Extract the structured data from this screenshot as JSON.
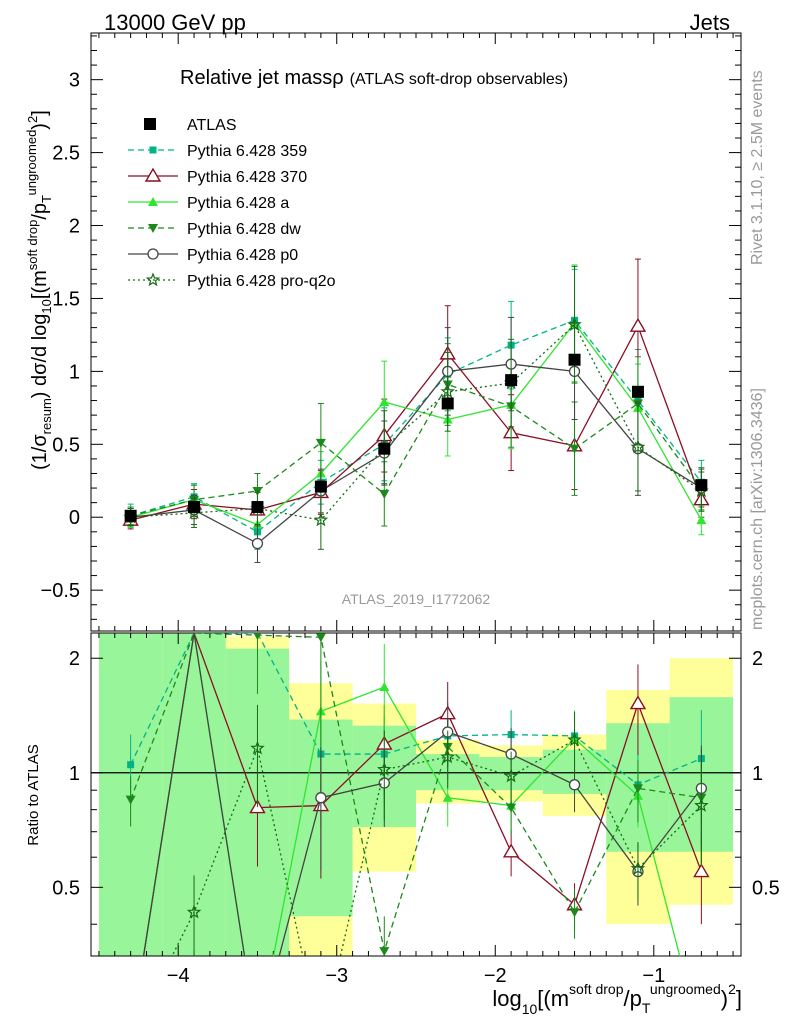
{
  "header": {
    "left": "13000 GeV pp",
    "right": "Jets"
  },
  "side_labels": {
    "rivet": "Rivet 3.1.10, ≥ 2.5M events",
    "mcplots": "mcplots.cern.ch [arXiv:1306.3436]"
  },
  "colors": {
    "atlas": "#000000",
    "p359": "#00b386",
    "p370": "#8b0f24",
    "pa": "#2ee62e",
    "pdw": "#1b8a1b",
    "pp0": "#444444",
    "pq2o": "#166b16",
    "band_yellow": "#ffff99",
    "band_green": "#99f599"
  },
  "chart_data": {
    "type": "line",
    "title_main": "Relative jet massρ",
    "title_sub": "(ATLAS soft-drop observables)",
    "watermark": "ATLAS_2019_I1772062",
    "xlabel": "log10[(m^soft drop/pT^ungroomed)^2]",
    "xlabel_parts": {
      "pre": "log",
      "sub": "10",
      "mid1": "[(m",
      "sup1": "soft drop",
      "mid2": "/p",
      "sub2": "T",
      "sup2": "ungroomed",
      "post": ")",
      "sup3": "2",
      "end": "]"
    },
    "ylabel_main": "(1/σresum) dσ/d log10[(m^soft drop/pT^ungroomed)^2]",
    "ylabel_ratio": "Ratio to ATLAS",
    "xlim": [
      -4.55,
      -0.45
    ],
    "ylim": [
      -0.78,
      3.32
    ],
    "ratio_ylim": [
      0.33,
      2.33
    ],
    "x_ticks": [
      -4,
      -3,
      -2,
      -1
    ],
    "x_tick_labels": [
      "−4",
      "−3",
      "−2",
      "−1"
    ],
    "y_ticks": [
      -0.5,
      0,
      0.5,
      1,
      1.5,
      2,
      2.5,
      3
    ],
    "y_tick_labels": [
      "−0.5",
      "0",
      "0.5",
      "1",
      "1.5",
      "2",
      "2.5",
      "3"
    ],
    "ratio_ticks": [
      0.5,
      1,
      2
    ],
    "ratio_tick_labels": [
      "0.5",
      "1",
      "2"
    ],
    "x": [
      -4.3,
      -3.9,
      -3.5,
      -3.1,
      -2.7,
      -2.3,
      -1.9,
      -1.5,
      -1.1,
      -0.7
    ],
    "bin_edges": [
      -4.5,
      -4.1,
      -3.7,
      -3.3,
      -2.9,
      -2.5,
      -2.1,
      -1.7,
      -1.3,
      -0.9,
      -0.5
    ],
    "data": {
      "name": "ATLAS",
      "y": [
        0.01,
        0.07,
        0.07,
        0.21,
        0.47,
        0.78,
        0.94,
        1.08,
        0.86,
        0.22
      ]
    },
    "ratio_bands": {
      "yellow": [
        [
          0.33,
          2.33
        ],
        [
          0.33,
          2.33
        ],
        [
          0.33,
          2.28
        ],
        [
          0.33,
          1.72
        ],
        [
          0.55,
          1.52
        ],
        [
          0.83,
          1.22
        ],
        [
          0.84,
          1.18
        ],
        [
          0.77,
          1.26
        ],
        [
          0.4,
          1.65
        ],
        [
          0.45,
          2.0
        ]
      ],
      "green": [
        [
          0.33,
          2.33
        ],
        [
          0.33,
          2.33
        ],
        [
          0.33,
          2.12
        ],
        [
          0.42,
          1.38
        ],
        [
          0.72,
          1.33
        ],
        [
          0.9,
          1.12
        ],
        [
          0.9,
          1.1
        ],
        [
          0.88,
          1.15
        ],
        [
          0.62,
          1.35
        ],
        [
          0.62,
          1.58
        ]
      ]
    },
    "series": [
      {
        "name": "Pythia 6.428 359",
        "key": "p359",
        "dash": "6,4",
        "marker": "square-small",
        "y": [
          0.01,
          0.14,
          -0.1,
          0.24,
          0.5,
          0.98,
          1.18,
          1.35,
          0.8,
          0.24
        ],
        "err": [
          0.08,
          0.09,
          0.12,
          0.15,
          0.25,
          0.25,
          0.3,
          0.35,
          0.35,
          0.15
        ],
        "ratio": [
          1.05,
          2.33,
          2.33,
          1.12,
          1.12,
          1.25,
          1.26,
          1.25,
          0.93,
          1.09
        ]
      },
      {
        "name": "Pythia 6.428 370",
        "key": "p370",
        "dash": "",
        "marker": "triangle-open",
        "y": [
          -0.02,
          0.09,
          0.05,
          0.17,
          0.56,
          1.12,
          0.58,
          0.49,
          1.31,
          0.12
        ],
        "err": [
          0.06,
          0.1,
          0.12,
          0.15,
          0.25,
          0.33,
          0.26,
          0.3,
          0.46,
          0.12
        ],
        "ratio": [
          0.05,
          2.33,
          0.81,
          0.82,
          1.19,
          1.43,
          0.62,
          0.45,
          1.52,
          0.55
        ]
      },
      {
        "name": "Pythia 6.428 a",
        "key": "pa",
        "dash": "",
        "marker": "triangle-up",
        "y": [
          0.0,
          0.12,
          -0.05,
          0.3,
          0.79,
          0.67,
          0.77,
          1.33,
          0.75,
          -0.02
        ],
        "err": [
          0.07,
          0.1,
          0.12,
          0.15,
          0.28,
          0.25,
          0.3,
          0.4,
          0.3,
          0.1
        ],
        "ratio": [
          0.0,
          2.33,
          0.0,
          1.45,
          1.68,
          0.86,
          0.82,
          1.23,
          0.87,
          0.0
        ]
      },
      {
        "name": "Pythia 6.428 dw",
        "key": "pdw",
        "dash": "6,4",
        "marker": "triangle-down",
        "y": [
          0.01,
          0.12,
          0.18,
          0.51,
          0.16,
          0.91,
          0.76,
          0.47,
          0.78,
          0.19
        ],
        "err": [
          0.06,
          0.1,
          0.12,
          0.27,
          0.22,
          0.28,
          0.28,
          0.32,
          0.32,
          0.15
        ],
        "ratio": [
          0.85,
          2.33,
          2.3,
          2.27,
          0.34,
          1.17,
          0.81,
          0.43,
          0.91,
          0.86
        ]
      },
      {
        "name": "Pythia 6.428 p0",
        "key": "pp0",
        "dash": "",
        "marker": "circle-open",
        "y": [
          0.0,
          0.05,
          -0.18,
          0.18,
          0.44,
          1.0,
          1.05,
          1.0,
          0.47,
          0.2
        ],
        "err": [
          0.06,
          0.1,
          0.13,
          0.15,
          0.22,
          0.3,
          0.32,
          0.33,
          0.32,
          0.13
        ],
        "ratio": [
          0.0,
          2.33,
          0.0,
          0.86,
          0.94,
          1.28,
          1.12,
          0.93,
          0.55,
          0.91
        ]
      },
      {
        "name": "Pythia 6.428 pro-q2o",
        "key": "pq2o",
        "dash": "2,3",
        "marker": "star",
        "y": [
          0.0,
          0.03,
          0.06,
          -0.02,
          0.48,
          0.86,
          0.92,
          1.32,
          0.48,
          0.18
        ],
        "err": [
          0.06,
          0.1,
          0.12,
          0.2,
          0.25,
          0.27,
          0.3,
          0.4,
          0.3,
          0.13
        ],
        "ratio": [
          0.0,
          0.43,
          1.16,
          0.0,
          1.02,
          1.1,
          0.98,
          1.22,
          0.56,
          0.82
        ]
      }
    ]
  }
}
